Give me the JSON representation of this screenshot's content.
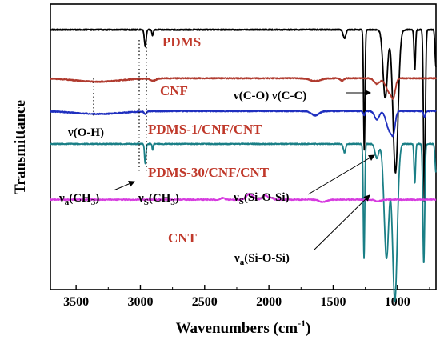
{
  "chart_data": {
    "type": "line",
    "title": "",
    "xlabel": "Wavenumbers (cm",
    "xlabel_sup": "-1",
    "xlabel_end": ")",
    "ylabel": "Transmittance",
    "xlim": [
      3700,
      700
    ],
    "x_ticks": [
      3500,
      3000,
      2500,
      2000,
      1500,
      1000
    ],
    "x_tick_labels": [
      "3500",
      "3000",
      "2500",
      "2000",
      "1500",
      "1000"
    ],
    "y_ticks_shown": false,
    "grid": false,
    "legend": "none",
    "series": [
      {
        "name": "PDMS",
        "color": "#000000",
        "baseline": 0.91,
        "features": [
          {
            "x": 2962,
            "depth": 0.06,
            "width": 10
          },
          {
            "x": 2905,
            "depth": 0.02,
            "width": 8
          },
          {
            "x": 1412,
            "depth": 0.03,
            "width": 15
          },
          {
            "x": 1258,
            "depth": 0.42,
            "width": 8
          },
          {
            "x": 1095,
            "depth": 0.24,
            "width": 24
          },
          {
            "x": 1015,
            "depth": 0.5,
            "width": 28
          },
          {
            "x": 865,
            "depth": 0.14,
            "width": 8
          },
          {
            "x": 790,
            "depth": 0.6,
            "width": 10
          },
          {
            "x": 700,
            "depth": 0.13,
            "width": 10
          }
        ]
      },
      {
        "name": "CNF",
        "color": "#b03a2e",
        "baseline": 0.74,
        "features": [
          {
            "x": 3330,
            "depth": 0.012,
            "width": 250
          },
          {
            "x": 2900,
            "depth": 0.008,
            "width": 30
          },
          {
            "x": 1640,
            "depth": 0.01,
            "width": 60
          },
          {
            "x": 1430,
            "depth": 0.008,
            "width": 20
          },
          {
            "x": 1160,
            "depth": 0.02,
            "width": 30
          },
          {
            "x": 1060,
            "depth": 0.05,
            "width": 40
          },
          {
            "x": 1030,
            "depth": 0.04,
            "width": 20
          }
        ]
      },
      {
        "name": "PDMS-1/CNF/CNT",
        "color": "#1f2fbf",
        "baseline": 0.625,
        "features": [
          {
            "x": 3330,
            "depth": 0.01,
            "width": 250
          },
          {
            "x": 2962,
            "depth": 0.01,
            "width": 12
          },
          {
            "x": 1640,
            "depth": 0.015,
            "width": 40
          },
          {
            "x": 1260,
            "depth": 0.015,
            "width": 10
          },
          {
            "x": 1160,
            "depth": 0.03,
            "width": 25
          },
          {
            "x": 1060,
            "depth": 0.07,
            "width": 35
          },
          {
            "x": 1030,
            "depth": 0.05,
            "width": 18
          },
          {
            "x": 790,
            "depth": 0.02,
            "width": 10
          }
        ]
      },
      {
        "name": "PDMS-30/CNF/CNT",
        "color": "#1a7f86",
        "baseline": 0.51,
        "features": [
          {
            "x": 2962,
            "depth": 0.07,
            "width": 8
          },
          {
            "x": 2905,
            "depth": 0.02,
            "width": 6
          },
          {
            "x": 1412,
            "depth": 0.03,
            "width": 12
          },
          {
            "x": 1260,
            "depth": 0.4,
            "width": 8
          },
          {
            "x": 1160,
            "depth": 0.05,
            "width": 20
          },
          {
            "x": 1085,
            "depth": 0.4,
            "width": 26
          },
          {
            "x": 1020,
            "depth": 0.55,
            "width": 26
          },
          {
            "x": 865,
            "depth": 0.14,
            "width": 8
          },
          {
            "x": 795,
            "depth": 0.42,
            "width": 10
          },
          {
            "x": 700,
            "depth": 0.1,
            "width": 10
          }
        ]
      },
      {
        "name": "CNT",
        "color": "#d63adf",
        "baseline": 0.315,
        "features": [
          {
            "x": 2360,
            "depth": -0.006,
            "width": 20
          },
          {
            "x": 2150,
            "depth": -0.02,
            "width": 35
          },
          {
            "x": 2030,
            "depth": -0.015,
            "width": 30
          },
          {
            "x": 1980,
            "depth": -0.006,
            "width": 20
          },
          {
            "x": 1580,
            "depth": 0.008,
            "width": 40
          },
          {
            "x": 1150,
            "depth": 0.006,
            "width": 30
          }
        ]
      }
    ],
    "annotations": {
      "oh": {
        "base": "ν(O-H)"
      },
      "ch3_a": {
        "base": "ν",
        "sub": "a",
        "rest": "(CH",
        "sub2": "3",
        "end": ")"
      },
      "ch3_s": {
        "base": "ν",
        "sub": "S",
        "rest": "(CH",
        "sub2": "3",
        "end": ")"
      },
      "co_cc": {
        "base": "ν(C-O) ν(C-C)"
      },
      "sios_s": {
        "base": "ν",
        "sub": "S",
        "rest": "(Si-O-Si)"
      },
      "sios_a": {
        "base": "ν",
        "sub": "a",
        "rest": "(Si-O-Si)"
      }
    }
  }
}
